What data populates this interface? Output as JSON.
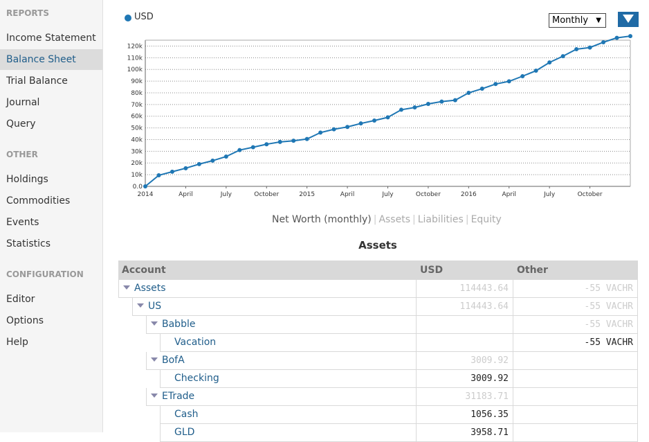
{
  "sidebar": {
    "sections": [
      {
        "title": "REPORTS",
        "items": [
          "Income Statement",
          "Balance Sheet",
          "Trial Balance",
          "Journal",
          "Query"
        ]
      },
      {
        "title": "OTHER",
        "items": [
          "Holdings",
          "Commodities",
          "Events",
          "Statistics"
        ]
      },
      {
        "title": "CONFIGURATION",
        "items": [
          "Editor",
          "Options",
          "Help"
        ]
      }
    ],
    "active": "Balance Sheet"
  },
  "chart_controls": {
    "legend_label": "USD",
    "legend_color": "#1f77b4",
    "interval": "Monthly"
  },
  "chart_data": {
    "type": "line",
    "title": "",
    "xlabel": "",
    "ylabel": "",
    "ylim": [
      0,
      125000
    ],
    "yticks": [
      "0.0",
      "10k",
      "20k",
      "30k",
      "40k",
      "50k",
      "60k",
      "70k",
      "80k",
      "90k",
      "100k",
      "110k",
      "120k"
    ],
    "xticks": [
      "2014",
      "April",
      "July",
      "October",
      "2015",
      "April",
      "July",
      "October",
      "2016",
      "April",
      "July",
      "October"
    ],
    "grid": "horizontal dotted",
    "series": [
      {
        "name": "USD",
        "color": "#1f77b4",
        "x": [
          "2014-01",
          "2014-02",
          "2014-03",
          "2014-04",
          "2014-05",
          "2014-06",
          "2014-07",
          "2014-08",
          "2014-09",
          "2014-10",
          "2014-11",
          "2014-12",
          "2015-01",
          "2015-02",
          "2015-03",
          "2015-04",
          "2015-05",
          "2015-06",
          "2015-07",
          "2015-08",
          "2015-09",
          "2015-10",
          "2015-11",
          "2015-12",
          "2016-01",
          "2016-02",
          "2016-03",
          "2016-04",
          "2016-05",
          "2016-06",
          "2016-07",
          "2016-08",
          "2016-09",
          "2016-10",
          "2016-11",
          "2016-12",
          "2017-01"
        ],
        "values": [
          0,
          9500,
          12500,
          15500,
          19000,
          22000,
          25500,
          31000,
          33500,
          36000,
          38000,
          39000,
          40500,
          46000,
          48800,
          50800,
          53800,
          56300,
          59000,
          65500,
          67500,
          70500,
          72500,
          73700,
          80000,
          83500,
          87500,
          89800,
          94200,
          98900,
          106000,
          111300,
          117300,
          118700,
          123200,
          127000,
          128500
        ]
      }
    ]
  },
  "chart_tabs": [
    "Net Worth (monthly)",
    "Assets",
    "Liabilities",
    "Equity"
  ],
  "assets": {
    "title": "Assets",
    "columns": [
      "Account",
      "USD",
      "Other"
    ],
    "rows": [
      {
        "name": "Assets",
        "usd": "114443.64",
        "other": "-55 VACHR"
      },
      {
        "name": "US",
        "usd": "114443.64",
        "other": "-55 VACHR"
      },
      {
        "name": "Babble",
        "usd": "",
        "other": "-55 VACHR"
      },
      {
        "name": "Vacation",
        "usd": "",
        "other": "-55 VACHR"
      },
      {
        "name": "BofA",
        "usd": "3009.92",
        "other": ""
      },
      {
        "name": "Checking",
        "usd": "3009.92",
        "other": ""
      },
      {
        "name": "ETrade",
        "usd": "31183.71",
        "other": ""
      },
      {
        "name": "Cash",
        "usd": "1056.35",
        "other": ""
      },
      {
        "name": "GLD",
        "usd": "3958.71",
        "other": ""
      }
    ]
  }
}
